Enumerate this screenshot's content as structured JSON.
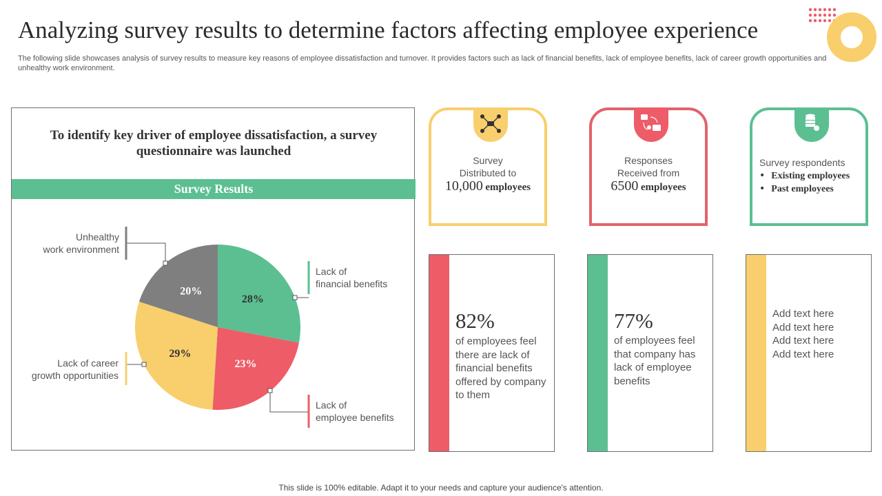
{
  "slide": {
    "title": "Analyzing survey results to determine factors affecting employee experience",
    "subtitle": "The following slide showcases analysis of survey results to measure key reasons of employee dissatisfaction and turnover. It provides factors such as lack of financial benefits, lack of employee benefits, lack of career growth opportunities and unhealthy work environment.",
    "footer": "This slide is 100% editable. Adapt it to your needs and capture your audience's attention."
  },
  "panel": {
    "heading_line1": "To identify key driver of employee dissatisfaction, a survey",
    "heading_line2": "questionnaire was launched",
    "band": "Survey Results"
  },
  "chart_data": {
    "type": "pie",
    "slices": [
      {
        "name": "Lack of financial benefits",
        "label_line1": "Lack of",
        "label_line2": "financial benefits",
        "value": 28,
        "value_label": "28%",
        "color": "#5bbf92"
      },
      {
        "name": "Lack of employee benefits",
        "label_line1": "Lack of",
        "label_line2": "employee benefits",
        "value": 23,
        "value_label": "23%",
        "color": "#ee5c67"
      },
      {
        "name": "Lack of career growth opportunities",
        "label_line1": "Lack of career",
        "label_line2": "growth opportunities",
        "value": 29,
        "value_label": "29%",
        "color": "#f8cf6c"
      },
      {
        "name": "Unhealthy work environment",
        "label_line1": "Unhealthy",
        "label_line2": "work environment",
        "value": 20,
        "value_label": "20%",
        "color": "#7f7f7f"
      }
    ]
  },
  "cards": [
    {
      "line1": "Survey",
      "line2": "Distributed to",
      "big": "10,000",
      "unit": "employees",
      "color": "#f8cf6c",
      "icon": "network-people-icon"
    },
    {
      "line1": "Responses",
      "line2": "Received from",
      "big": "6500",
      "unit": "employees",
      "color": "#e0636b",
      "icon": "chat-people-icon"
    },
    {
      "line1": "Survey respondents",
      "bullets": [
        "Existing employees",
        "Past employees"
      ],
      "color": "#5bbf92",
      "icon": "database-icon"
    }
  ],
  "stats": [
    {
      "pct": "82%",
      "desc": "of employees feel there are lack of financial benefits offered by company to them",
      "color": "#ee5c67"
    },
    {
      "pct": "77%",
      "desc": "of employees feel that company has lack of employee benefits",
      "color": "#5bbf92"
    },
    {
      "lines": [
        "Add text here",
        "Add text here",
        "Add text here",
        "Add text here"
      ],
      "color": "#f8cf6c"
    }
  ],
  "colors": {
    "green": "#5bbf92",
    "red": "#ee5c67",
    "yellow": "#f8cf6c",
    "gray": "#7f7f7f"
  }
}
